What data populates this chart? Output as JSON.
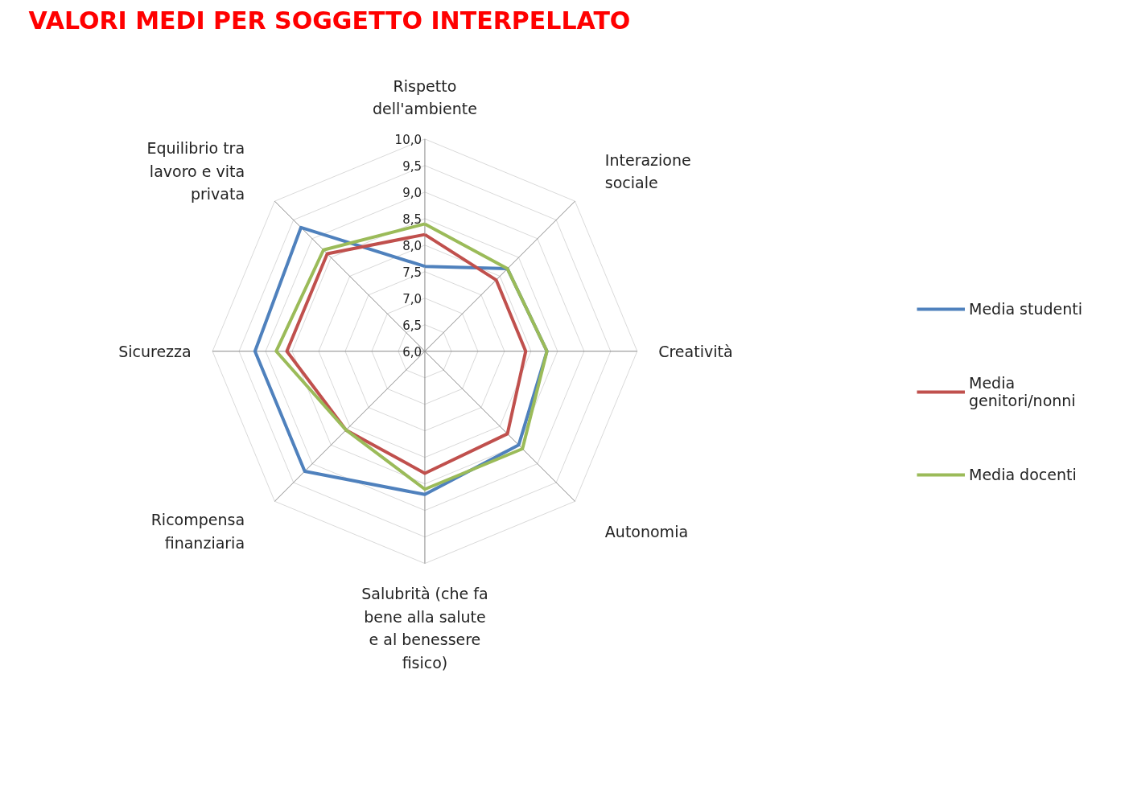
{
  "chart_data": {
    "type": "radar",
    "title": "VALORI MEDI PER SOGGETTO INTERPELLATO",
    "categories": [
      "Rispetto dell'ambiente",
      "Interazione sociale",
      "Creatività",
      "Autonomia",
      "Salubrità (che fa bene alla salute e al benessere fisico)",
      "Ricompensa finanziaria",
      "Sicurezza",
      "Equilibrio tra lavoro e vita privata"
    ],
    "series": [
      {
        "name": "Media studenti",
        "color": "#4f81bd",
        "values": [
          7.6,
          8.2,
          8.3,
          8.5,
          8.7,
          9.2,
          9.2,
          9.3
        ]
      },
      {
        "name": "Media genitori/nonni",
        "color": "#c0504d",
        "values": [
          8.2,
          7.9,
          7.9,
          8.2,
          8.3,
          8.1,
          8.6,
          8.6
        ]
      },
      {
        "name": "Media docenti",
        "color": "#9bbb59",
        "values": [
          8.4,
          8.2,
          8.3,
          8.6,
          8.6,
          8.1,
          8.8,
          8.7
        ]
      }
    ],
    "ylim": [
      6,
      10
    ],
    "yticks": [
      {
        "value": 6,
        "label": "6,0"
      },
      {
        "value": 6.5,
        "label": "6,5"
      },
      {
        "value": 7,
        "label": "7,0"
      },
      {
        "value": 7.5,
        "label": "7,5"
      },
      {
        "value": 8,
        "label": "8,0"
      },
      {
        "value": 8.5,
        "label": "8,5"
      },
      {
        "value": 9,
        "label": "9,0"
      },
      {
        "value": 9.5,
        "label": "9,5"
      },
      {
        "value": 10,
        "label": "10,0"
      }
    ],
    "grid": true,
    "legend": "right",
    "marker": "none",
    "line_style": "solid"
  }
}
